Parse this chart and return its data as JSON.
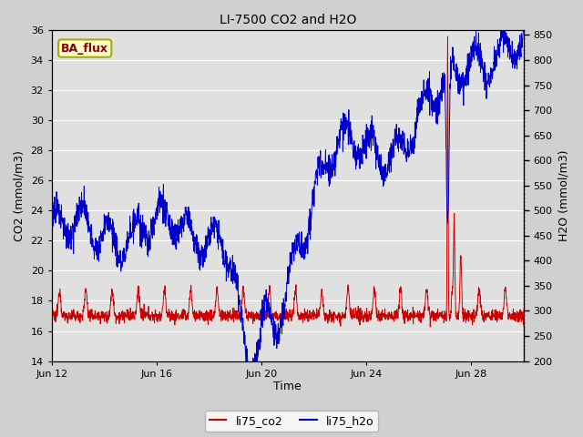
{
  "title": "LI-7500 CO2 and H2O",
  "xlabel": "Time",
  "ylabel_left": "CO2 (mmol/m3)",
  "ylabel_right": "H2O (mmol/m3)",
  "ylim_left": [
    14,
    36
  ],
  "ylim_right": [
    200,
    860
  ],
  "yticks_left": [
    14,
    16,
    18,
    20,
    22,
    24,
    26,
    28,
    30,
    32,
    34,
    36
  ],
  "yticks_right": [
    200,
    250,
    300,
    350,
    400,
    450,
    500,
    550,
    600,
    650,
    700,
    750,
    800,
    850
  ],
  "xlim_days": [
    0,
    18
  ],
  "xtick_labels": [
    "Jun 12",
    "Jun 16",
    "Jun 20",
    "Jun 24",
    "Jun 28"
  ],
  "xtick_positions": [
    0,
    4,
    8,
    12,
    16
  ],
  "annotation_text": "BA_flux",
  "annotation_bg": "#ffffcc",
  "annotation_border": "#aaaa00",
  "annotation_text_color": "#880000",
  "line_co2_color": "#cc0000",
  "line_h2o_color": "#0000cc",
  "grid_color": "#ffffff",
  "legend_co2_color": "#cc0000",
  "legend_h2o_color": "#0000cc",
  "fig_bg": "#d0d0d0",
  "plot_bg": "#e0e0e0"
}
